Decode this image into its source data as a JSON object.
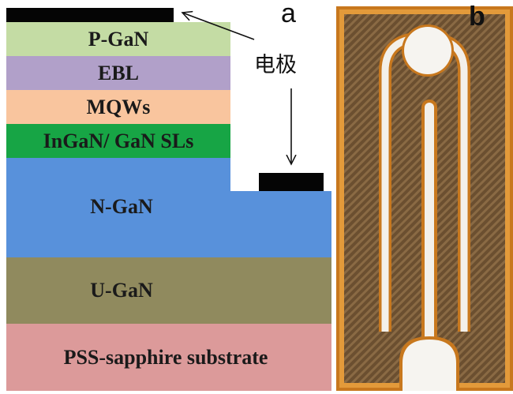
{
  "panel_a": {
    "label": "a",
    "annotation": "电极",
    "layers": [
      {
        "label": "P-GaN",
        "color": "#c4dca4"
      },
      {
        "label": "EBL",
        "color": "#b1a0c9"
      },
      {
        "label": "MQWs",
        "color": "#f9c59e"
      },
      {
        "label": "InGaN/ GaN SLs",
        "color": "#17a545"
      },
      {
        "label": "N-GaN",
        "color": "#5891db"
      },
      {
        "label": "U-GaN",
        "color": "#908a5e"
      },
      {
        "label": "PSS-sapphire substrate",
        "color": "#dc9a9a"
      }
    ]
  },
  "panel_b": {
    "label": "b"
  }
}
